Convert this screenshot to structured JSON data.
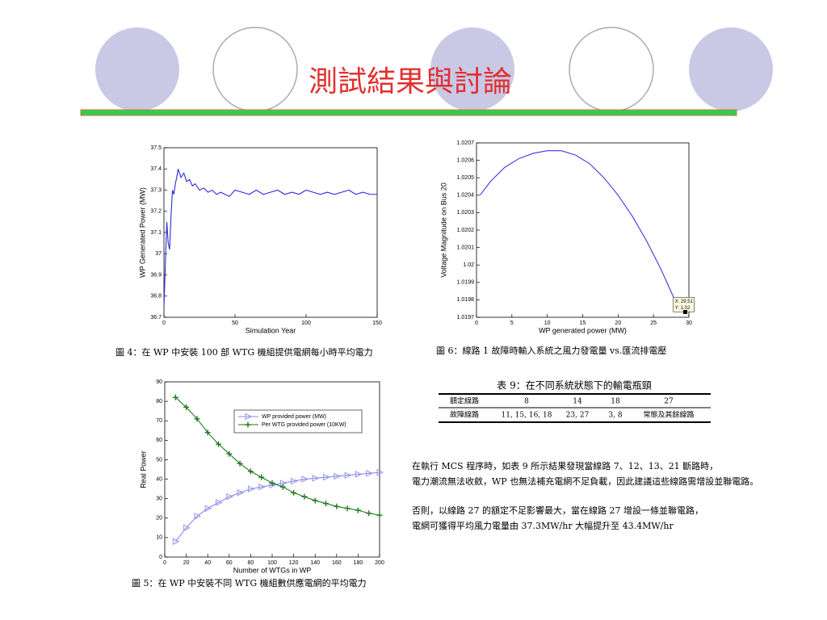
{
  "title": "測試結果與討論",
  "chart_data": [
    {
      "type": "line",
      "color": "#2b2bd9",
      "xlabel": "Simulation Year",
      "ylabel": "WP Generated Power (MW)",
      "x": [
        0,
        1,
        2,
        3,
        4,
        5,
        6,
        7,
        8,
        9,
        10,
        12,
        14,
        16,
        18,
        20,
        22,
        25,
        28,
        31,
        34,
        37,
        40,
        43,
        46,
        50,
        55,
        60,
        65,
        70,
        75,
        80,
        85,
        90,
        95,
        100,
        105,
        110,
        115,
        120,
        125,
        130,
        135,
        140,
        145,
        150
      ],
      "values": [
        36.75,
        36.95,
        37.15,
        37.05,
        37.02,
        37.18,
        37.3,
        37.28,
        37.33,
        37.36,
        37.4,
        37.36,
        37.38,
        37.34,
        37.35,
        37.32,
        37.33,
        37.3,
        37.31,
        37.29,
        37.3,
        37.28,
        37.29,
        37.28,
        37.27,
        37.3,
        37.29,
        37.28,
        37.3,
        37.28,
        37.29,
        37.3,
        37.28,
        37.29,
        37.28,
        37.3,
        37.29,
        37.28,
        37.29,
        37.28,
        37.29,
        37.3,
        37.28,
        37.29,
        37.28,
        37.28
      ],
      "xlim": [
        0,
        150
      ],
      "xticks": [
        0,
        50,
        100,
        150
      ],
      "ylim": [
        36.7,
        37.5
      ],
      "yticks": [
        36.7,
        36.8,
        36.9,
        37,
        37.1,
        37.2,
        37.3,
        37.4,
        37.5
      ]
    },
    {
      "type": "line",
      "color": "#3a3ae0",
      "xlabel": "WP generated power (MW)",
      "ylabel": "Voltage Magnitude on Bus 20",
      "x": [
        0.5,
        2,
        4,
        6,
        8,
        10,
        12,
        14,
        16,
        18,
        20,
        22,
        24,
        26,
        28,
        28.7
      ],
      "values": [
        1.0204,
        1.02048,
        1.02056,
        1.02061,
        1.02064,
        1.020655,
        1.020655,
        1.02063,
        1.02058,
        1.0205,
        1.0204,
        1.02028,
        1.02014,
        1.01998,
        1.0198,
        1.01975
      ],
      "annotations": [
        "X: 29.51",
        "Y: 1.02"
      ],
      "xlim": [
        0,
        30
      ],
      "xticks": [
        0,
        5,
        10,
        15,
        20,
        25,
        30
      ],
      "ylim": [
        1.0197,
        1.0207
      ],
      "yticks": [
        1.0197,
        1.0198,
        1.0199,
        1.02,
        1.0201,
        1.0202,
        1.0203,
        1.0204,
        1.0205,
        1.0206,
        1.0207
      ]
    },
    {
      "type": "line",
      "xlabel": "Number of WTGs in WP",
      "ylabel": "Real Power",
      "legend": "upper right",
      "x": [
        10,
        20,
        30,
        40,
        50,
        60,
        70,
        80,
        90,
        100,
        110,
        120,
        130,
        140,
        150,
        160,
        170,
        180,
        190,
        200
      ],
      "series": [
        {
          "name": "WP provided power (MW)",
          "color": "#8a8af0",
          "marker": "triangle-right",
          "values": [
            8,
            15,
            21,
            25,
            28,
            31,
            33,
            35,
            36,
            37,
            38,
            39,
            40,
            40.5,
            41,
            41.5,
            42,
            42.5,
            43,
            43.5
          ]
        },
        {
          "name": "Per WTG provided power (10KW)",
          "color": "#1f7a1f",
          "marker": "plus",
          "values": [
            82,
            77,
            71,
            64,
            58,
            53,
            48,
            44,
            41,
            38,
            36,
            33,
            31,
            29,
            27.5,
            26,
            25,
            24,
            22.5,
            21.5
          ]
        }
      ],
      "xlim": [
        0,
        200
      ],
      "xticks": [
        0,
        20,
        40,
        60,
        80,
        100,
        120,
        140,
        160,
        180,
        200
      ],
      "ylim": [
        0,
        90
      ],
      "yticks": [
        0,
        10,
        20,
        30,
        40,
        50,
        60,
        70,
        80,
        90
      ]
    }
  ],
  "captions": [
    "圖 4：在 WP 中安裝 100 部 WTG 機組提供電網每小時平均電力",
    "圖 6：線路 1 故障時輸入系統之風力發電量 vs.匯流排電壓",
    "圖 5：在 WP 中安裝不同 WTG 機組數供應電網的平均電力"
  ],
  "table": {
    "title": "表 9：在不同系統狀態下的輸電瓶頸",
    "rows": [
      [
        "額定線路",
        "8",
        "14",
        "18",
        "27"
      ],
      [
        "故障線路",
        "11, 15, 16, 18",
        "23, 27",
        "3, 8",
        "常態及其餘線路"
      ]
    ]
  },
  "paragraphs": [
    "在執行 MCS 程序時，如表 9 所示結果發現當線路 7、12、13、21 斷路時，",
    "電力潮流無法收斂，WP 也無法補充電網不足負載，因此建議這些線路需增設並聯電路。",
    "否則，以線路 27 的額定不足影響最大，當在線路 27 增設一條並聯電路，",
    "電網可獲得平均風力電量由 37.3MW/hr 大幅提升至 43.4MW/hr"
  ]
}
